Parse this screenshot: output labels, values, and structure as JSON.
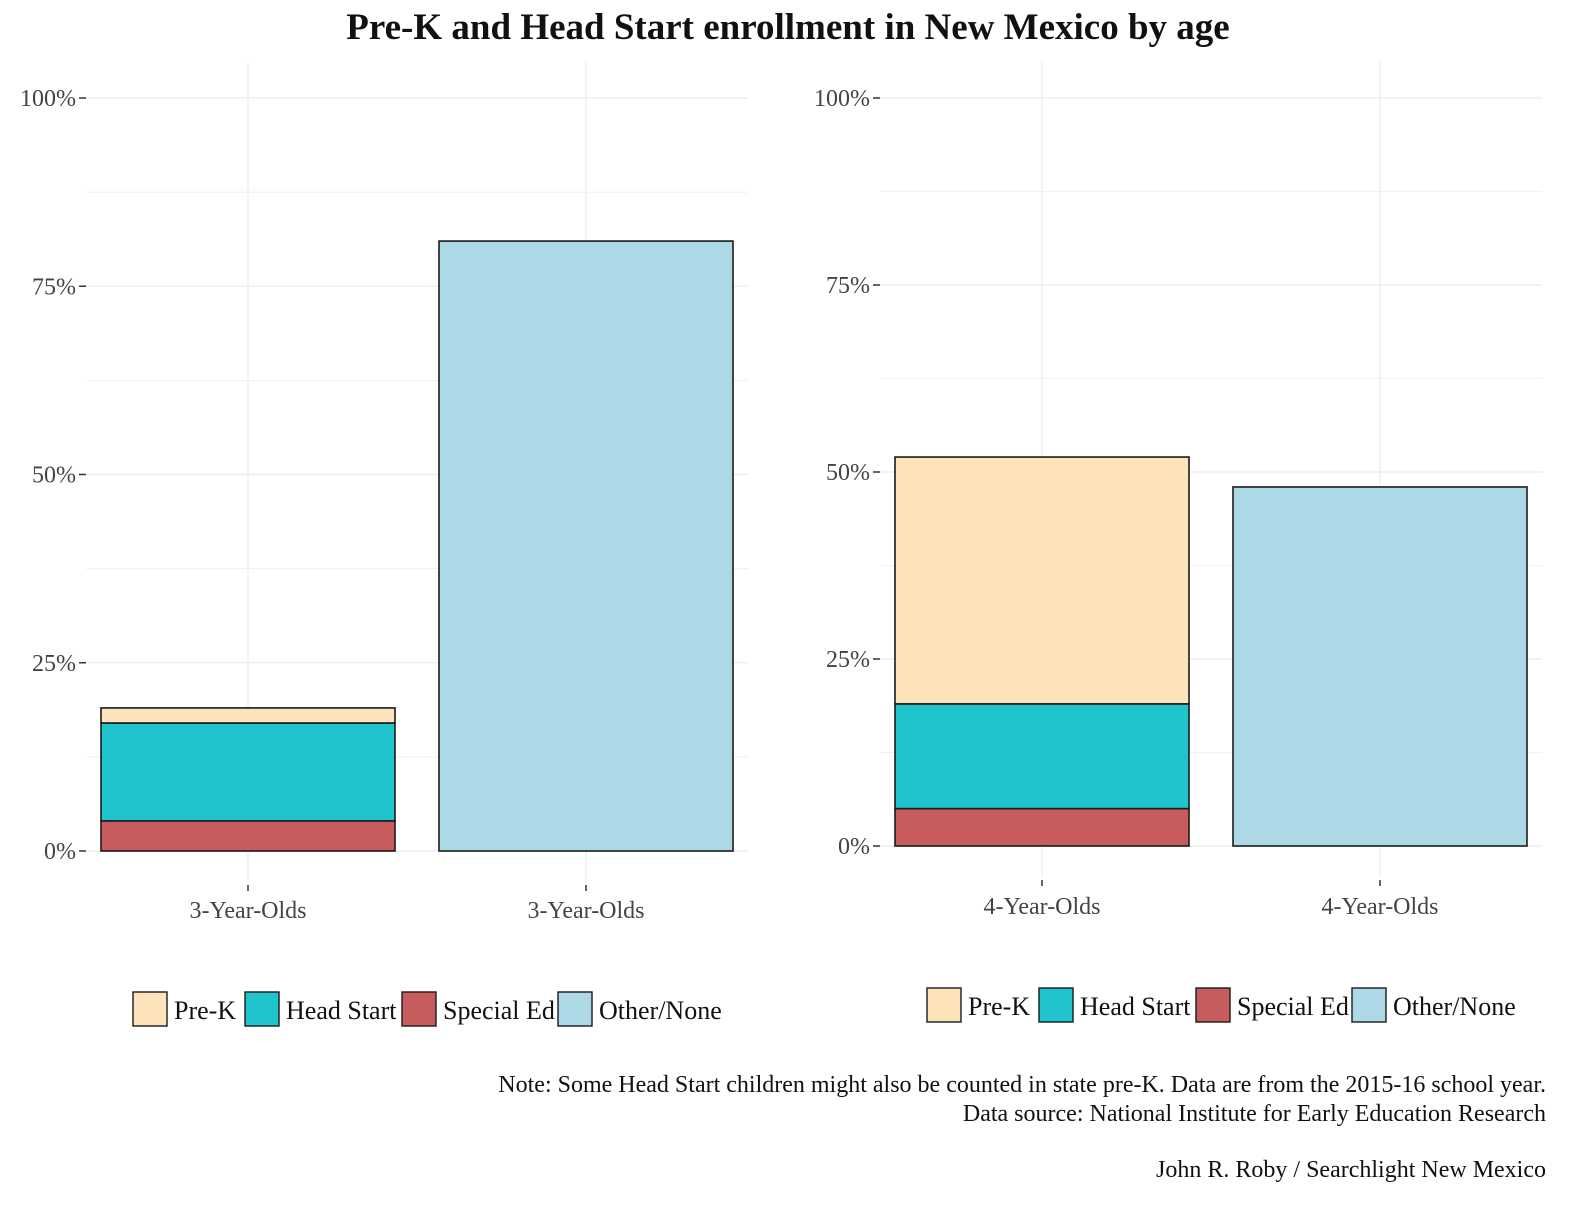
{
  "title": "Pre-K and Head Start enrollment in New Mexico by age",
  "colors": {
    "Pre-K": "#fce3b9",
    "Head Start": "#20c4cc",
    "Special Ed": "#c75b5e",
    "Other/None": "#add8e6"
  },
  "chart_data": [
    {
      "type": "bar",
      "stacked": true,
      "categories": [
        "3-Year-Olds",
        "3-Year-Olds"
      ],
      "series": [
        {
          "name": "Special Ed",
          "values": [
            4,
            0
          ]
        },
        {
          "name": "Head Start",
          "values": [
            13,
            0
          ]
        },
        {
          "name": "Pre-K",
          "values": [
            2,
            0
          ]
        },
        {
          "name": "Other/None",
          "values": [
            0,
            81
          ]
        }
      ],
      "ylim": [
        0,
        100
      ],
      "yticks": [
        "0%",
        "25%",
        "50%",
        "75%",
        "100%"
      ],
      "ytick_values": [
        0,
        25,
        50,
        75,
        100
      ],
      "legend": [
        "Pre-K",
        "Head Start",
        "Special Ed",
        "Other/None"
      ],
      "legend_position": "bottom",
      "grid": true
    },
    {
      "type": "bar",
      "stacked": true,
      "categories": [
        "4-Year-Olds",
        "4-Year-Olds"
      ],
      "series": [
        {
          "name": "Special Ed",
          "values": [
            5,
            0
          ]
        },
        {
          "name": "Head Start",
          "values": [
            14,
            0
          ]
        },
        {
          "name": "Pre-K",
          "values": [
            33,
            0
          ]
        },
        {
          "name": "Other/None",
          "values": [
            0,
            48
          ]
        }
      ],
      "ylim": [
        0,
        100
      ],
      "yticks": [
        "0%",
        "25%",
        "50%",
        "75%",
        "100%"
      ],
      "ytick_values": [
        0,
        25,
        50,
        75,
        100
      ],
      "legend": [
        "Pre-K",
        "Head Start",
        "Special Ed",
        "Other/None"
      ],
      "legend_position": "bottom",
      "grid": true
    }
  ],
  "notes": {
    "line1": "Note: Some Head Start children might also be counted in state pre-K.  Data are from the 2015-16 school year.",
    "line2": "Data source:  National Institute for Early Education Research",
    "credit": "John R. Roby / Searchlight New Mexico"
  }
}
